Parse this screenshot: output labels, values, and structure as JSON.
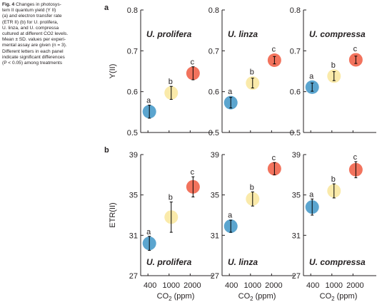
{
  "caption": {
    "title": "Fig. 4",
    "lines": [
      "Changes in photosys-",
      "tem II quantum yield (Y II)",
      "(a) and electron transfer rate",
      "(ETR II) (b) for U. prolifera,",
      "U. linza, and U. compressa",
      "cultured at different CO2 levels.",
      "Mean ± SD. values per experi-",
      "mental assay are given (n = 3).",
      "Different letters in each panel",
      "indicate significant differences",
      "(P < 0.05) among treatments"
    ]
  },
  "colors": {
    "400": "#5ba5cf",
    "1000": "#faeaaa",
    "2000": "#f2735d",
    "error_bar": "#000000",
    "axis": "#231f20"
  },
  "chart_data": [
    {
      "type": "scatter",
      "panel_label": "a",
      "ylabel": "Y(II)",
      "ylim": [
        0.5,
        0.8
      ],
      "yticks": [
        "0.5",
        "0.6",
        "0.7",
        "0.8"
      ],
      "categories": [
        "400",
        "1000",
        "2000"
      ],
      "facets": [
        {
          "name": "U. prolifera",
          "values": [
            0.551,
            0.597,
            0.645
          ],
          "errors": [
            0.016,
            0.016,
            0.016
          ],
          "letters": [
            "a",
            "b",
            "c"
          ]
        },
        {
          "name": "U. linza",
          "values": [
            0.573,
            0.621,
            0.677
          ],
          "errors": [
            0.013,
            0.012,
            0.009
          ],
          "letters": [
            "a",
            "b",
            "c"
          ]
        },
        {
          "name": "U. compressa",
          "values": [
            0.611,
            0.638,
            0.678
          ],
          "errors": [
            0.01,
            0.011,
            0.009
          ],
          "letters": [
            "a",
            "b",
            "c"
          ]
        }
      ]
    },
    {
      "type": "scatter",
      "panel_label": "b",
      "ylabel": "ETR(II)",
      "xlabel": "CO2 (ppm)",
      "ylim": [
        27,
        39
      ],
      "yticks": [
        "27",
        "31",
        "35",
        "39"
      ],
      "xticks": [
        "400",
        "1000",
        "2000"
      ],
      "categories": [
        "400",
        "1000",
        "2000"
      ],
      "facets": [
        {
          "name": "U. prolifera",
          "values": [
            30.2,
            32.8,
            35.8
          ],
          "errors": [
            0.7,
            1.5,
            1.0
          ],
          "letters": [
            "a",
            "b",
            "c"
          ]
        },
        {
          "name": "U. linza",
          "values": [
            31.9,
            34.6,
            37.6
          ],
          "errors": [
            0.6,
            0.7,
            0.6
          ],
          "letters": [
            "a",
            "b",
            "c"
          ]
        },
        {
          "name": "U. compressa",
          "values": [
            33.8,
            35.4,
            37.5
          ],
          "errors": [
            0.8,
            0.7,
            0.8
          ],
          "letters": [
            "a",
            "b",
            "c"
          ]
        }
      ]
    }
  ]
}
